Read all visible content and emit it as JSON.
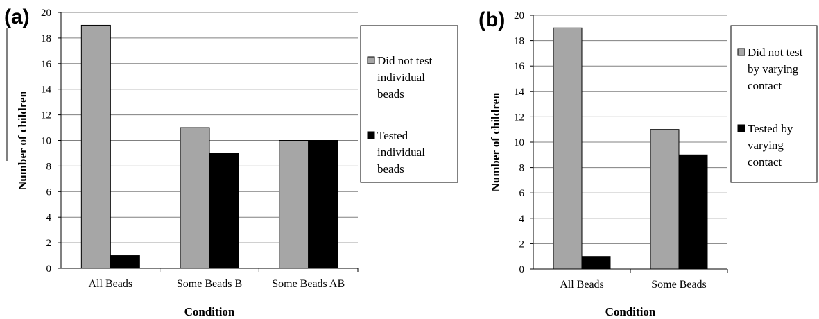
{
  "colors": {
    "series0": "#a6a6a6",
    "series1": "#000000",
    "grid": "#808080"
  },
  "chart_data": [
    {
      "type": "bar",
      "panel_label": "(a)",
      "categories": [
        "All Beads",
        "Some Beads B",
        "Some Beads AB"
      ],
      "series": [
        {
          "name": "Did not test individual beads",
          "legend_lines": [
            "Did not test",
            "individual",
            "beads"
          ],
          "values": [
            19,
            11,
            10
          ]
        },
        {
          "name": "Tested individual beads",
          "legend_lines": [
            "Tested",
            "individual",
            "beads"
          ],
          "values": [
            1,
            9,
            10
          ]
        }
      ],
      "xlabel": "Condition",
      "ylabel": "Number of children",
      "ylim": [
        0,
        20
      ],
      "yticks": [
        0,
        2,
        4,
        6,
        8,
        10,
        12,
        14,
        16,
        18,
        20
      ],
      "grid": true,
      "legend_position": "right"
    },
    {
      "type": "bar",
      "panel_label": "(b)",
      "categories": [
        "All Beads",
        "Some Beads"
      ],
      "series": [
        {
          "name": "Did not test by varying contact",
          "legend_lines": [
            "Did not test",
            "by varying",
            "contact"
          ],
          "values": [
            19,
            11
          ]
        },
        {
          "name": "Tested by varying contact",
          "legend_lines": [
            "Tested by",
            "varying",
            "contact"
          ],
          "values": [
            1,
            9
          ]
        }
      ],
      "xlabel": "Condition",
      "ylabel": "Number of children",
      "ylim": [
        0,
        20
      ],
      "yticks": [
        0,
        2,
        4,
        6,
        8,
        10,
        12,
        14,
        16,
        18,
        20
      ],
      "grid": true,
      "legend_position": "right"
    }
  ]
}
